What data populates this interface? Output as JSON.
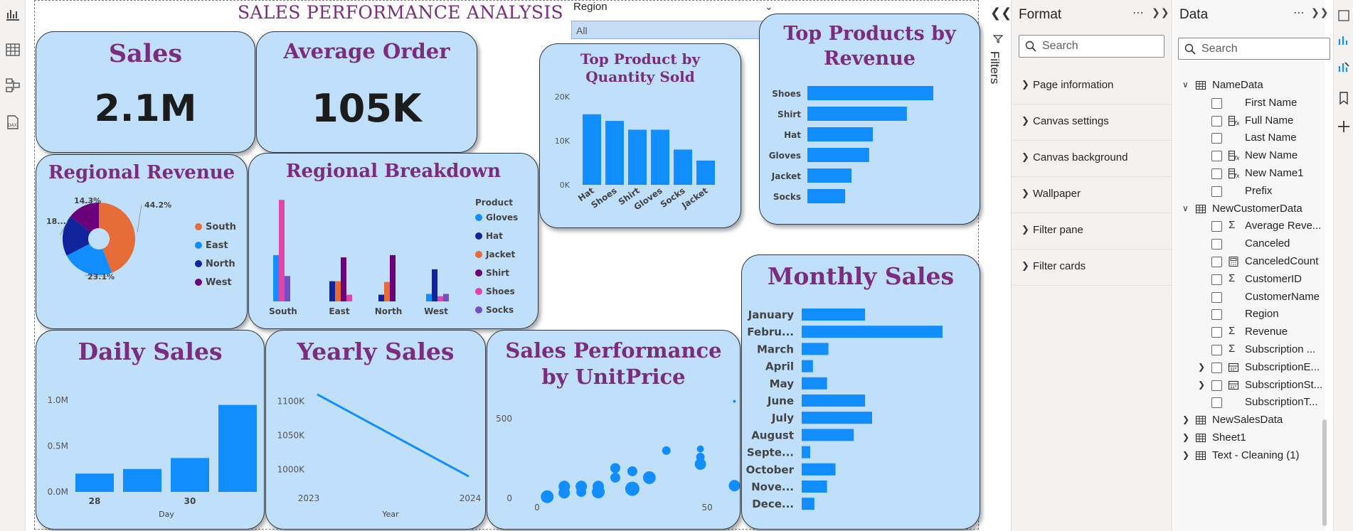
{
  "page": {
    "title": "SALES PERFORMANCE ANALYSIS"
  },
  "slicer": {
    "label": "Region",
    "selected": "All"
  },
  "kpis": {
    "sales": {
      "title": "Sales",
      "value": "2.1M"
    },
    "average_order": {
      "title": "Average Order",
      "value": "105K"
    }
  },
  "cards": {
    "regional_revenue": "Regional Revenue",
    "regional_breakdown": "Regional Breakdown",
    "top_product_qty": "Top Product by Quantity Sold",
    "top_products_revenue": "Top Products by Revenue",
    "daily_sales": "Daily Sales",
    "yearly_sales": "Yearly Sales",
    "sales_perf_unitprice": "Sales Performance by UnitPrice",
    "monthly_sales": "Monthly Sales"
  },
  "colors": {
    "bar_blue": "#118DFF",
    "title_purple": "#7B2C7E",
    "card_bg": "#BFDFFB",
    "south": "#E66C37",
    "east": "#118DFF",
    "north": "#12239E",
    "west": "#6B007B",
    "gloves": "#118DFF",
    "hat": "#12239E",
    "jacket": "#E66C37",
    "shirt": "#6B007B",
    "shoes": "#E044A7",
    "socks": "#744EC2"
  },
  "chart_data": [
    {
      "id": "regional_revenue",
      "type": "pie",
      "title": "Regional Revenue",
      "slices": [
        {
          "label": "South",
          "percent": 44.2,
          "data_label": "44.2%"
        },
        {
          "label": "East",
          "percent": 23.1,
          "data_label": "23.1%"
        },
        {
          "label": "North",
          "percent": 18.4,
          "data_label": "18..."
        },
        {
          "label": "West",
          "percent": 14.3,
          "data_label": "14.3%"
        }
      ],
      "donut": true,
      "legend": "right"
    },
    {
      "id": "regional_breakdown",
      "type": "bar",
      "title": "Regional Breakdown",
      "categories": [
        "South",
        "East",
        "North",
        "West"
      ],
      "legend_title": "Product",
      "series": [
        {
          "name": "Gloves",
          "values": [
            0.62,
            0.0,
            0.0,
            0.1
          ]
        },
        {
          "name": "Hat",
          "values": [
            0.0,
            0.27,
            0.09,
            0.43
          ]
        },
        {
          "name": "Jacket",
          "values": [
            0.0,
            0.27,
            0.26,
            0.0
          ]
        },
        {
          "name": "Shirt",
          "values": [
            0.0,
            0.59,
            0.62,
            0.0
          ]
        },
        {
          "name": "Shoes",
          "values": [
            1.36,
            0.09,
            0.0,
            0.07
          ]
        },
        {
          "name": "Socks",
          "values": [
            0.34,
            0.0,
            0.0,
            0.1
          ]
        }
      ],
      "legend": "right"
    },
    {
      "id": "top_product_qty",
      "type": "bar",
      "title": "Top Product by Quantity Sold",
      "categories": [
        "Hat",
        "Shoes",
        "Shirt",
        "Gloves",
        "Socks",
        "Jacket"
      ],
      "values": [
        16000,
        14500,
        12500,
        12500,
        8000,
        5500
      ],
      "yticks": [
        "0K",
        "10K",
        "20K"
      ],
      "ylim": [
        0,
        20000
      ]
    },
    {
      "id": "top_products_revenue",
      "type": "bar",
      "orientation": "horizontal",
      "title": "Top Products by Revenue",
      "categories": [
        "Shoes",
        "Shirt",
        "Hat",
        "Gloves",
        "Jacket",
        "Socks"
      ],
      "values": [
        100,
        79,
        52,
        49,
        35,
        30
      ]
    },
    {
      "id": "daily_sales",
      "type": "bar",
      "title": "Daily Sales",
      "xlabel": "Day",
      "x": [
        28,
        29,
        30,
        31
      ],
      "xtick_labels": [
        "28",
        "",
        "30",
        ""
      ],
      "values": [
        0.2,
        0.25,
        0.37,
        0.95
      ],
      "yticks": [
        "0.0M",
        "0.5M",
        "1.0M"
      ],
      "ylim": [
        0,
        1.25
      ]
    },
    {
      "id": "yearly_sales",
      "type": "line",
      "title": "Yearly Sales",
      "xlabel": "Year",
      "x": [
        "2023",
        "2024"
      ],
      "values": [
        1110,
        990
      ],
      "yticks": [
        "1000K",
        "1050K",
        "1100K"
      ],
      "ylim": [
        985,
        1115
      ]
    },
    {
      "id": "sales_perf_unitprice",
      "type": "scatter",
      "title": "Sales Performance by UnitPrice",
      "xticks": [
        "0",
        "50"
      ],
      "yticks": [
        "0",
        "500"
      ],
      "xlim": [
        -5,
        60
      ],
      "ylim": [
        -40,
        630
      ],
      "points": [
        {
          "x": 3,
          "y": 10,
          "s": 9
        },
        {
          "x": 8,
          "y": 75,
          "s": 8
        },
        {
          "x": 8,
          "y": 35,
          "s": 8
        },
        {
          "x": 13,
          "y": 75,
          "s": 8
        },
        {
          "x": 13,
          "y": 40,
          "s": 7
        },
        {
          "x": 18,
          "y": 75,
          "s": 8
        },
        {
          "x": 18,
          "y": 40,
          "s": 9
        },
        {
          "x": 23,
          "y": 190,
          "s": 7
        },
        {
          "x": 23,
          "y": 130,
          "s": 7
        },
        {
          "x": 28,
          "y": 170,
          "s": 7
        },
        {
          "x": 28,
          "y": 60,
          "s": 10
        },
        {
          "x": 33,
          "y": 130,
          "s": 9
        },
        {
          "x": 38,
          "y": 300,
          "s": 6
        },
        {
          "x": 48,
          "y": 310,
          "s": 5
        },
        {
          "x": 48,
          "y": 260,
          "s": 6
        },
        {
          "x": 48,
          "y": 215,
          "s": 8
        },
        {
          "x": 58,
          "y": 80,
          "s": 8
        },
        {
          "x": 58,
          "y": 610,
          "s": 2
        }
      ]
    },
    {
      "id": "monthly_sales",
      "type": "bar",
      "orientation": "horizontal",
      "title": "Monthly Sales",
      "categories": [
        "January",
        "Febru...",
        "March",
        "April",
        "May",
        "June",
        "July",
        "August",
        "Septe...",
        "October",
        "Nove...",
        "Dece..."
      ],
      "values": [
        45,
        100,
        19,
        8,
        18,
        45,
        50,
        37,
        6,
        24,
        18,
        9
      ]
    }
  ],
  "filters_pane": {
    "label": "Filters"
  },
  "format_pane": {
    "title": "Format",
    "search_placeholder": "Search",
    "sections": [
      "Page information",
      "Canvas settings",
      "Canvas background",
      "Wallpaper",
      "Filter pane",
      "Filter cards"
    ]
  },
  "data_pane": {
    "title": "Data",
    "search_placeholder": "Search",
    "tree": [
      {
        "level": 0,
        "label": "NameData",
        "expanded": true,
        "icon": "table-icon"
      },
      {
        "level": 1,
        "label": "First Name",
        "icon": "none"
      },
      {
        "level": 1,
        "label": "Full Name",
        "icon": "calc-column-icon"
      },
      {
        "level": 1,
        "label": "Last Name",
        "icon": "none"
      },
      {
        "level": 1,
        "label": "New Name",
        "icon": "calc-column-icon"
      },
      {
        "level": 1,
        "label": "New Name1",
        "icon": "calc-column-icon"
      },
      {
        "level": 1,
        "label": "Prefix",
        "icon": "none"
      },
      {
        "level": 0,
        "label": "NewCustomerData",
        "expanded": true,
        "icon": "table-icon"
      },
      {
        "level": 1,
        "label": "Average Reve...",
        "icon": "sigma-icon"
      },
      {
        "level": 1,
        "label": "Canceled",
        "icon": "none"
      },
      {
        "level": 1,
        "label": "CanceledCount",
        "icon": "measure-icon"
      },
      {
        "level": 1,
        "label": "CustomerID",
        "icon": "sigma-icon"
      },
      {
        "level": 1,
        "label": "CustomerName",
        "icon": "none"
      },
      {
        "level": 1,
        "label": "Region",
        "icon": "none"
      },
      {
        "level": 1,
        "label": "Revenue",
        "icon": "sigma-icon"
      },
      {
        "level": 1,
        "label": "Subscription ...",
        "icon": "sigma-icon"
      },
      {
        "level": 1,
        "label": "SubscriptionE...",
        "icon": "date-icon",
        "collapsible": true
      },
      {
        "level": 1,
        "label": "SubscriptionSt...",
        "icon": "date-icon",
        "collapsible": true
      },
      {
        "level": 1,
        "label": "SubscriptionT...",
        "icon": "none"
      },
      {
        "level": 0,
        "label": "NewSalesData",
        "expanded": false,
        "icon": "table-icon"
      },
      {
        "level": 0,
        "label": "Sheet1",
        "expanded": false,
        "icon": "table-icon"
      },
      {
        "level": 0,
        "label": "Text - Cleaning (1)",
        "expanded": false,
        "icon": "table-icon"
      }
    ]
  }
}
